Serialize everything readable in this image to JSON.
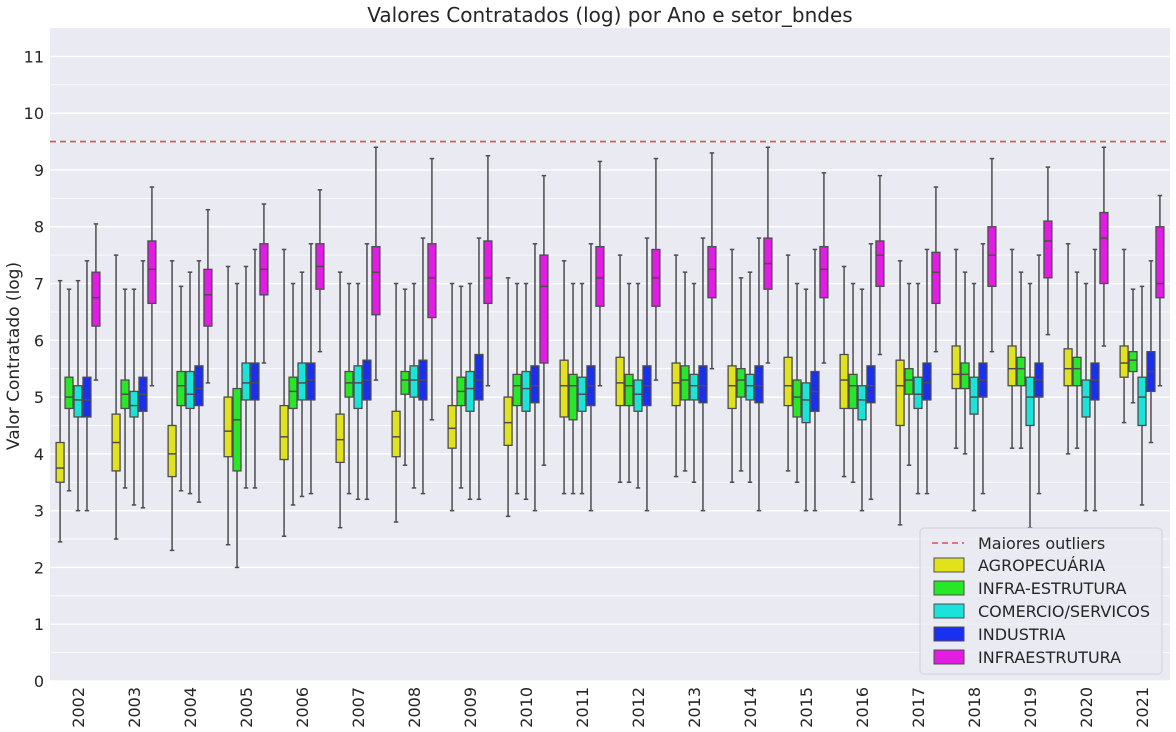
{
  "chart_data": {
    "type": "boxplot",
    "title": "Valores Contratados (log) por Ano e setor_bndes",
    "xlabel": "",
    "ylabel": "Valor Contratado (log)",
    "ylim": [
      0,
      11.5
    ],
    "yticks": [
      0,
      1,
      2,
      3,
      4,
      5,
      6,
      7,
      8,
      9,
      10,
      11
    ],
    "grid": true,
    "legend_position": "bottom-right",
    "reference_line": {
      "label": "Maiores outliers",
      "y": 9.5,
      "color": "#d9534f",
      "style": "dashed"
    },
    "categories": [
      "2002",
      "2003",
      "2004",
      "2005",
      "2006",
      "2007",
      "2008",
      "2009",
      "2010",
      "2011",
      "2012",
      "2013",
      "2014",
      "2015",
      "2016",
      "2017",
      "2018",
      "2019",
      "2020",
      "2021"
    ],
    "series": [
      {
        "name": "AGROPECUÁRIA",
        "color": "#e2e21c",
        "boxes": [
          {
            "q1": 3.5,
            "median": 3.75,
            "q3": 4.2,
            "whislo": 2.45,
            "whishi": 7.05
          },
          {
            "q1": 3.7,
            "median": 4.2,
            "q3": 4.7,
            "whislo": 2.5,
            "whishi": 7.5
          },
          {
            "q1": 3.6,
            "median": 4.0,
            "q3": 4.5,
            "whislo": 2.3,
            "whishi": 7.4
          },
          {
            "q1": 3.95,
            "median": 4.4,
            "q3": 5.0,
            "whislo": 2.4,
            "whishi": 7.3
          },
          {
            "q1": 3.9,
            "median": 4.3,
            "q3": 4.85,
            "whislo": 2.55,
            "whishi": 7.6
          },
          {
            "q1": 3.85,
            "median": 4.25,
            "q3": 4.7,
            "whislo": 2.7,
            "whishi": 7.2
          },
          {
            "q1": 3.95,
            "median": 4.3,
            "q3": 4.75,
            "whislo": 2.8,
            "whishi": 7.0
          },
          {
            "q1": 4.1,
            "median": 4.45,
            "q3": 4.85,
            "whislo": 3.0,
            "whishi": 7.0
          },
          {
            "q1": 4.15,
            "median": 4.55,
            "q3": 5.0,
            "whislo": 2.9,
            "whishi": 7.1
          },
          {
            "q1": 4.65,
            "median": 5.2,
            "q3": 5.65,
            "whislo": 3.3,
            "whishi": 7.4
          },
          {
            "q1": 4.85,
            "median": 5.25,
            "q3": 5.7,
            "whislo": 3.5,
            "whishi": 7.5
          },
          {
            "q1": 4.85,
            "median": 5.25,
            "q3": 5.6,
            "whislo": 3.6,
            "whishi": 7.5
          },
          {
            "q1": 4.8,
            "median": 5.2,
            "q3": 5.55,
            "whislo": 3.5,
            "whishi": 7.6
          },
          {
            "q1": 4.85,
            "median": 5.2,
            "q3": 5.7,
            "whislo": 3.7,
            "whishi": 7.5
          },
          {
            "q1": 4.8,
            "median": 5.3,
            "q3": 5.75,
            "whislo": 3.6,
            "whishi": 7.3
          },
          {
            "q1": 4.5,
            "median": 5.2,
            "q3": 5.65,
            "whislo": 2.75,
            "whishi": 7.4
          },
          {
            "q1": 5.15,
            "median": 5.4,
            "q3": 5.9,
            "whislo": 4.1,
            "whishi": 7.6
          },
          {
            "q1": 5.2,
            "median": 5.5,
            "q3": 5.9,
            "whislo": 4.1,
            "whishi": 7.6
          },
          {
            "q1": 5.2,
            "median": 5.5,
            "q3": 5.85,
            "whislo": 4.0,
            "whishi": 7.7
          },
          {
            "q1": 5.35,
            "median": 5.6,
            "q3": 5.9,
            "whislo": 4.55,
            "whishi": 7.6
          }
        ]
      },
      {
        "name": "INFRA-ESTRUTURA",
        "color": "#27e827",
        "boxes": [
          {
            "q1": 4.8,
            "median": 5.0,
            "q3": 5.35,
            "whislo": 3.35,
            "whishi": 6.9
          },
          {
            "q1": 4.8,
            "median": 5.05,
            "q3": 5.3,
            "whislo": 3.4,
            "whishi": 6.9
          },
          {
            "q1": 4.85,
            "median": 5.2,
            "q3": 5.45,
            "whislo": 3.35,
            "whishi": 6.95
          },
          {
            "q1": 3.7,
            "median": 4.6,
            "q3": 5.15,
            "whislo": 2.0,
            "whishi": 7.0
          },
          {
            "q1": 4.8,
            "median": 5.1,
            "q3": 5.35,
            "whislo": 3.1,
            "whishi": 7.0
          },
          {
            "q1": 5.0,
            "median": 5.25,
            "q3": 5.45,
            "whislo": 3.3,
            "whishi": 7.0
          },
          {
            "q1": 5.05,
            "median": 5.3,
            "q3": 5.45,
            "whislo": 3.8,
            "whishi": 6.9
          },
          {
            "q1": 4.85,
            "median": 5.1,
            "q3": 5.35,
            "whislo": 3.4,
            "whishi": 6.95
          },
          {
            "q1": 4.85,
            "median": 5.2,
            "q3": 5.4,
            "whislo": 3.3,
            "whishi": 7.0
          },
          {
            "q1": 4.6,
            "median": 5.2,
            "q3": 5.4,
            "whislo": 3.3,
            "whishi": 7.0
          },
          {
            "q1": 4.85,
            "median": 5.2,
            "q3": 5.4,
            "whislo": 3.5,
            "whishi": 7.0
          },
          {
            "q1": 4.95,
            "median": 5.3,
            "q3": 5.55,
            "whislo": 3.7,
            "whishi": 7.2
          },
          {
            "q1": 5.0,
            "median": 5.3,
            "q3": 5.5,
            "whislo": 3.7,
            "whishi": 7.1
          },
          {
            "q1": 4.65,
            "median": 5.0,
            "q3": 5.3,
            "whislo": 3.5,
            "whishi": 7.0
          },
          {
            "q1": 4.8,
            "median": 5.2,
            "q3": 5.4,
            "whislo": 3.5,
            "whishi": 7.0
          },
          {
            "q1": 5.05,
            "median": 5.3,
            "q3": 5.5,
            "whislo": 3.8,
            "whishi": 7.0
          },
          {
            "q1": 5.15,
            "median": 5.4,
            "q3": 5.6,
            "whislo": 4.0,
            "whishi": 7.2
          },
          {
            "q1": 5.2,
            "median": 5.5,
            "q3": 5.7,
            "whislo": 4.1,
            "whishi": 7.2
          },
          {
            "q1": 5.2,
            "median": 5.5,
            "q3": 5.7,
            "whislo": 4.1,
            "whishi": 7.2
          },
          {
            "q1": 5.45,
            "median": 5.65,
            "q3": 5.8,
            "whislo": 4.9,
            "whishi": 6.9
          }
        ]
      },
      {
        "name": "COMERCIO/SERVICOS",
        "color": "#1ce3d9",
        "boxes": [
          {
            "q1": 4.65,
            "median": 4.95,
            "q3": 5.2,
            "whislo": 3.0,
            "whishi": 7.05
          },
          {
            "q1": 4.65,
            "median": 4.85,
            "q3": 5.1,
            "whislo": 3.1,
            "whishi": 6.9
          },
          {
            "q1": 4.8,
            "median": 5.05,
            "q3": 5.45,
            "whislo": 3.3,
            "whishi": 7.2
          },
          {
            "q1": 4.95,
            "median": 5.25,
            "q3": 5.6,
            "whislo": 3.4,
            "whishi": 7.3
          },
          {
            "q1": 4.95,
            "median": 5.25,
            "q3": 5.6,
            "whislo": 3.25,
            "whishi": 7.2
          },
          {
            "q1": 4.8,
            "median": 5.25,
            "q3": 5.55,
            "whislo": 3.2,
            "whishi": 7.0
          },
          {
            "q1": 5.0,
            "median": 5.3,
            "q3": 5.55,
            "whislo": 3.4,
            "whishi": 7.0
          },
          {
            "q1": 4.75,
            "median": 5.15,
            "q3": 5.45,
            "whislo": 3.2,
            "whishi": 7.0
          },
          {
            "q1": 4.75,
            "median": 5.15,
            "q3": 5.45,
            "whislo": 3.2,
            "whishi": 7.0
          },
          {
            "q1": 4.75,
            "median": 5.05,
            "q3": 5.35,
            "whislo": 3.3,
            "whishi": 7.0
          },
          {
            "q1": 4.75,
            "median": 5.05,
            "q3": 5.3,
            "whislo": 3.4,
            "whishi": 7.0
          },
          {
            "q1": 4.95,
            "median": 5.2,
            "q3": 5.4,
            "whislo": 3.5,
            "whishi": 7.0
          },
          {
            "q1": 4.95,
            "median": 5.2,
            "q3": 5.4,
            "whislo": 3.5,
            "whishi": 7.2
          },
          {
            "q1": 4.55,
            "median": 4.95,
            "q3": 5.25,
            "whislo": 3.0,
            "whishi": 6.9
          },
          {
            "q1": 4.6,
            "median": 4.95,
            "q3": 5.2,
            "whislo": 3.0,
            "whishi": 6.9
          },
          {
            "q1": 4.8,
            "median": 5.05,
            "q3": 5.35,
            "whislo": 3.3,
            "whishi": 7.0
          },
          {
            "q1": 4.7,
            "median": 5.0,
            "q3": 5.35,
            "whislo": 3.0,
            "whishi": 7.0
          },
          {
            "q1": 4.5,
            "median": 5.0,
            "q3": 5.35,
            "whislo": 2.7,
            "whishi": 7.0
          },
          {
            "q1": 4.65,
            "median": 5.0,
            "q3": 5.3,
            "whislo": 3.0,
            "whishi": 7.0
          },
          {
            "q1": 4.5,
            "median": 5.0,
            "q3": 5.35,
            "whislo": 3.1,
            "whishi": 6.95
          }
        ]
      },
      {
        "name": "INDUSTRIA",
        "color": "#1a30f0",
        "boxes": [
          {
            "q1": 4.65,
            "median": 4.95,
            "q3": 5.35,
            "whislo": 3.0,
            "whishi": 7.4
          },
          {
            "q1": 4.75,
            "median": 5.05,
            "q3": 5.35,
            "whislo": 3.05,
            "whishi": 7.4
          },
          {
            "q1": 4.85,
            "median": 5.15,
            "q3": 5.55,
            "whislo": 3.15,
            "whishi": 7.4
          },
          {
            "q1": 4.95,
            "median": 5.25,
            "q3": 5.6,
            "whislo": 3.4,
            "whishi": 7.6
          },
          {
            "q1": 4.95,
            "median": 5.3,
            "q3": 5.6,
            "whislo": 3.3,
            "whishi": 7.7
          },
          {
            "q1": 4.95,
            "median": 5.3,
            "q3": 5.65,
            "whislo": 3.2,
            "whishi": 7.7
          },
          {
            "q1": 4.95,
            "median": 5.3,
            "q3": 5.65,
            "whislo": 3.3,
            "whishi": 7.8
          },
          {
            "q1": 4.95,
            "median": 5.3,
            "q3": 5.75,
            "whislo": 3.2,
            "whishi": 7.8
          },
          {
            "q1": 4.9,
            "median": 5.2,
            "q3": 5.55,
            "whislo": 3.0,
            "whishi": 7.7
          },
          {
            "q1": 4.85,
            "median": 5.2,
            "q3": 5.55,
            "whislo": 3.0,
            "whishi": 7.7
          },
          {
            "q1": 4.85,
            "median": 5.2,
            "q3": 5.55,
            "whislo": 3.0,
            "whishi": 7.8
          },
          {
            "q1": 4.9,
            "median": 5.2,
            "q3": 5.55,
            "whislo": 3.0,
            "whishi": 7.8
          },
          {
            "q1": 4.9,
            "median": 5.2,
            "q3": 5.55,
            "whislo": 3.0,
            "whishi": 7.8
          },
          {
            "q1": 4.75,
            "median": 5.1,
            "q3": 5.45,
            "whislo": 3.0,
            "whishi": 7.6
          },
          {
            "q1": 4.9,
            "median": 5.2,
            "q3": 5.55,
            "whislo": 3.2,
            "whishi": 7.7
          },
          {
            "q1": 4.95,
            "median": 5.25,
            "q3": 5.6,
            "whislo": 3.3,
            "whishi": 7.6
          },
          {
            "q1": 5.0,
            "median": 5.3,
            "q3": 5.6,
            "whislo": 3.3,
            "whishi": 7.7
          },
          {
            "q1": 5.0,
            "median": 5.3,
            "q3": 5.6,
            "whislo": 3.3,
            "whishi": 7.5
          },
          {
            "q1": 4.95,
            "median": 5.3,
            "q3": 5.6,
            "whislo": 3.0,
            "whishi": 7.6
          },
          {
            "q1": 5.1,
            "median": 5.45,
            "q3": 5.8,
            "whislo": 4.2,
            "whishi": 7.4
          }
        ]
      },
      {
        "name": "INFRAESTRUTURA",
        "color": "#e21ce2",
        "boxes": [
          {
            "q1": 6.25,
            "median": 6.75,
            "q3": 7.2,
            "whislo": 5.3,
            "whishi": 8.05
          },
          {
            "q1": 6.65,
            "median": 7.25,
            "q3": 7.75,
            "whislo": 5.2,
            "whishi": 8.7
          },
          {
            "q1": 6.25,
            "median": 6.8,
            "q3": 7.25,
            "whislo": 5.25,
            "whishi": 8.3
          },
          {
            "q1": 6.8,
            "median": 7.25,
            "q3": 7.7,
            "whislo": 5.6,
            "whishi": 8.4
          },
          {
            "q1": 6.9,
            "median": 7.3,
            "q3": 7.7,
            "whislo": 5.8,
            "whishi": 8.65
          },
          {
            "q1": 6.45,
            "median": 7.2,
            "q3": 7.65,
            "whislo": 5.3,
            "whishi": 9.4
          },
          {
            "q1": 6.4,
            "median": 7.1,
            "q3": 7.7,
            "whislo": 4.6,
            "whishi": 9.2
          },
          {
            "q1": 6.65,
            "median": 7.1,
            "q3": 7.75,
            "whislo": 5.2,
            "whishi": 9.25
          },
          {
            "q1": 5.6,
            "median": 6.95,
            "q3": 7.5,
            "whislo": 3.8,
            "whishi": 8.9
          },
          {
            "q1": 6.6,
            "median": 7.1,
            "q3": 7.65,
            "whislo": 5.2,
            "whishi": 9.15
          },
          {
            "q1": 6.6,
            "median": 7.1,
            "q3": 7.6,
            "whislo": 5.3,
            "whishi": 9.2
          },
          {
            "q1": 6.75,
            "median": 7.25,
            "q3": 7.65,
            "whislo": 5.5,
            "whishi": 9.3
          },
          {
            "q1": 6.9,
            "median": 7.35,
            "q3": 7.8,
            "whislo": 5.6,
            "whishi": 9.4
          },
          {
            "q1": 6.75,
            "median": 7.25,
            "q3": 7.65,
            "whislo": 5.6,
            "whishi": 8.95
          },
          {
            "q1": 6.95,
            "median": 7.5,
            "q3": 7.75,
            "whislo": 5.75,
            "whishi": 8.9
          },
          {
            "q1": 6.65,
            "median": 7.2,
            "q3": 7.55,
            "whislo": 5.8,
            "whishi": 8.7
          },
          {
            "q1": 6.95,
            "median": 7.5,
            "q3": 8.0,
            "whislo": 5.8,
            "whishi": 9.2
          },
          {
            "q1": 7.1,
            "median": 7.75,
            "q3": 8.1,
            "whislo": 6.1,
            "whishi": 9.05
          },
          {
            "q1": 7.0,
            "median": 7.8,
            "q3": 8.25,
            "whislo": 5.9,
            "whishi": 9.4
          },
          {
            "q1": 6.75,
            "median": 7.0,
            "q3": 8.0,
            "whislo": 5.2,
            "whishi": 8.55
          }
        ]
      }
    ]
  }
}
